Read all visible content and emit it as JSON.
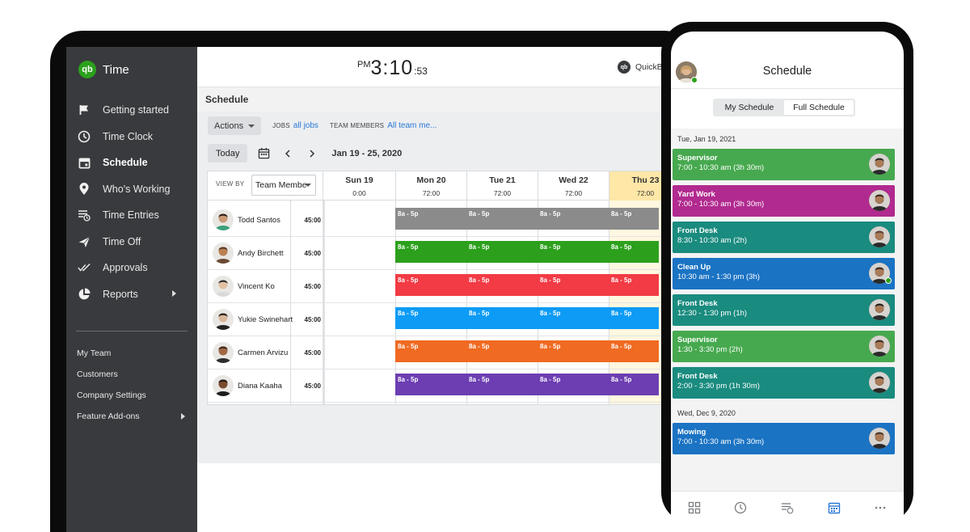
{
  "desktop": {
    "app_name": "Time",
    "nav": [
      {
        "label": "Getting started",
        "icon": "flag-icon"
      },
      {
        "label": "Time Clock",
        "icon": "clock-icon"
      },
      {
        "label": "Schedule",
        "icon": "calendar-icon",
        "active": true
      },
      {
        "label": "Who's Working",
        "icon": "location-pin-icon"
      },
      {
        "label": "Time Entries",
        "icon": "time-entries-icon"
      },
      {
        "label": "Time Off",
        "icon": "airplane-icon"
      },
      {
        "label": "Approvals",
        "icon": "double-check-icon"
      },
      {
        "label": "Reports",
        "icon": "pie-chart-icon",
        "has_submenu": true
      }
    ],
    "sublinks": [
      {
        "label": "My Team"
      },
      {
        "label": "Customers"
      },
      {
        "label": "Company Settings"
      },
      {
        "label": "Feature Add-ons",
        "has_submenu": true
      }
    ],
    "clock": {
      "ampm": "PM",
      "time": "3:10",
      "seconds": ":53"
    },
    "brand": "QuickBooks",
    "page_title": "Schedule",
    "filters": {
      "actions_label": "Actions",
      "jobs_label": "JOBS",
      "jobs_value": "all jobs",
      "team_label": "TEAM MEMBERS",
      "team_value": "All team me..."
    },
    "today_label": "Today",
    "date_range": "Jan 19 - 25, 2020",
    "view_by_label": "VIEW BY",
    "view_by_value": "Team Membe",
    "days": [
      {
        "name": "Sun 19",
        "hours": "0:00"
      },
      {
        "name": "Mon 20",
        "hours": "72:00"
      },
      {
        "name": "Tue 21",
        "hours": "72:00"
      },
      {
        "name": "Wed 22",
        "hours": "72:00"
      },
      {
        "name": "Thu 23",
        "hours": "72:00",
        "today": true
      }
    ],
    "shift_label": "8a - 5p",
    "employees": [
      {
        "name": "Todd Santos",
        "hours": "45:00",
        "color": "#8b8b8b",
        "skin": "#c99a76",
        "hair": "#2b1d14",
        "shirt": "#3aa07a"
      },
      {
        "name": "Andy Birchett",
        "hours": "45:00",
        "color": "#2ca01c",
        "skin": "#b98053",
        "hair": "#5a3a22",
        "shirt": "#6b4a34"
      },
      {
        "name": "Vincent Ko",
        "hours": "45:00",
        "color": "#f23b45",
        "skin": "#e2c0a2",
        "hair": "#2a2a2a",
        "shirt": "#d9d9d9"
      },
      {
        "name": "Yukie Swinehart",
        "hours": "45:00",
        "color": "#0d9bf5",
        "skin": "#d8b79a",
        "hair": "#1f1a17",
        "shirt": "#222222"
      },
      {
        "name": "Carmen Arvizu",
        "hours": "45:00",
        "color": "#f06a22",
        "skin": "#a06844",
        "hair": "#3a241a",
        "shirt": "#2d2d2d"
      },
      {
        "name": "Diana Kaaha",
        "hours": "45:00",
        "color": "#6c3eb2",
        "skin": "#7a4b2e",
        "hair": "#1c1410",
        "shirt": "#1c1c1c"
      }
    ]
  },
  "phone": {
    "title": "Schedule",
    "segments": [
      "My Schedule",
      "Full Schedule"
    ],
    "selected_segment": "Full Schedule",
    "groups": [
      {
        "date": "Tue, Jan 19, 2021",
        "cards": [
          {
            "title": "Supervisor",
            "time": "7:00 - 10:30 am (3h 30m)",
            "color": "#47a94f"
          },
          {
            "title": "Yard Work",
            "time": "7:00 - 10:30 am (3h 30m)",
            "color": "#b12a8f"
          },
          {
            "title": "Front Desk",
            "time": "8:30 - 10:30 am (2h)",
            "color": "#1a8b7f"
          },
          {
            "title": "Clean Up",
            "time": "10:30 am - 1:30 pm (3h)",
            "color": "#1b73c3",
            "online": true
          },
          {
            "title": "Front Desk",
            "time": "12:30 - 1:30 pm (1h)",
            "color": "#1a8b7f"
          },
          {
            "title": "Supervisor",
            "time": "1:30 - 3:30 pm (2h)",
            "color": "#47a94f"
          },
          {
            "title": "Front Desk",
            "time": "2:00 - 3:30 pm (1h 30m)",
            "color": "#1a8b7f"
          }
        ]
      },
      {
        "date": "Wed, Dec 9, 2020",
        "cards": [
          {
            "title": "Mowing",
            "time": "7:00 - 10:30 am (3h 30m)",
            "color": "#1b73c3"
          }
        ]
      }
    ],
    "tabs": [
      "dashboard-icon",
      "clock-icon",
      "time-entries-icon",
      "calendar-icon",
      "more-icon"
    ],
    "active_tab": "calendar-icon"
  },
  "colors": {
    "brand_green": "#2ca01c",
    "sidebar": "#393a3d",
    "link_blue": "#2b78d4",
    "today_highlight": "#ffe7a8"
  }
}
